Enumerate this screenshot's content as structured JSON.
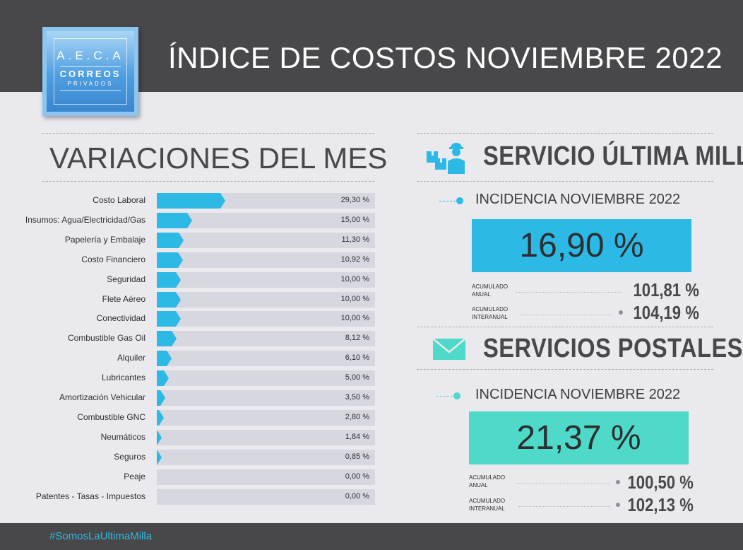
{
  "header": {
    "title": "ÍNDICE DE COSTOS NOVIEMBRE 2022"
  },
  "logo": {
    "line1": "A.E.C.A",
    "line2": "CORREOS",
    "line3": "PRIVADOS"
  },
  "left": {
    "title": "VARIACIONES DEL MES"
  },
  "chart_data": {
    "type": "bar",
    "orientation": "horizontal",
    "title": "VARIACIONES DEL MES",
    "categories": [
      "Costo Laboral",
      "Insumos: Agua/Electricidad/Gas",
      "Papelería y Embalaje",
      "Costo Financiero",
      "Seguridad",
      "Flete Aéreo",
      "Conectividad",
      "Combustible Gas Oil",
      "Alquiler",
      "Lubricantes",
      "Amortización Vehicular",
      "Combustible GNC",
      "Neumáticos",
      "Seguros",
      "Peaje",
      "Patentes - Tasas - Impuestos"
    ],
    "values": [
      29.3,
      15.0,
      11.3,
      10.92,
      10.0,
      10.0,
      10.0,
      8.12,
      6.1,
      5.0,
      3.5,
      2.8,
      1.84,
      0.85,
      0.0,
      0.0
    ],
    "value_labels": [
      "29,30 %",
      "15,00 %",
      "11,30 %",
      "10,92 %",
      "10,00 %",
      "10,00 %",
      "10,00 %",
      "8,12 %",
      "6,10 %",
      "5,00 %",
      "3,50 %",
      "2,80 %",
      "1,84 %",
      "0,85 %",
      "0,00 %",
      "0,00 %"
    ],
    "bar_color": "#2cb9e6",
    "track_color": "#d6d7df"
  },
  "ultima_milla": {
    "title": "SERVICIO ÚLTIMA MILLA",
    "icon": "delivery-person-icon",
    "incidence_label": "INCIDENCIA NOVIEMBRE 2022",
    "incidence_value": "16,90 %",
    "accent": "#2cb9e6",
    "acumulado_anual_label_1": "ACUMULADO",
    "acumulado_anual_label_2": "ANUAL",
    "acumulado_anual_value": "101,81 %",
    "acumulado_interanual_label_1": "ACUMULADO",
    "acumulado_interanual_label_2": "INTERANUAL",
    "acumulado_interanual_value": "104,19 %"
  },
  "postales": {
    "title": "SERVICIOS POSTALES",
    "icon": "envelope-icon",
    "incidence_label": "INCIDENCIA NOVIEMBRE 2022",
    "incidence_value": "21,37 %",
    "accent": "#4ed9c8",
    "acumulado_anual_label_1": "ACUMULADO",
    "acumulado_anual_label_2": "ANUAL",
    "acumulado_anual_value": "100,50 %",
    "acumulado_interanual_label_1": "ACUMULADO",
    "acumulado_interanual_label_2": "INTERANUAL",
    "acumulado_interanual_value": "102,13 %"
  },
  "footer": {
    "hashtag": "#SomosLaUltimaMilla"
  }
}
